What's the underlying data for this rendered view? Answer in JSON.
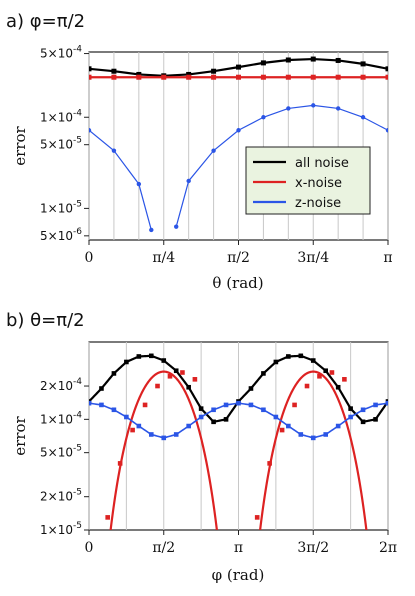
{
  "chart_data": [
    {
      "type": "line",
      "panel_label": "a) φ=π/2",
      "xlabel": "θ (rad)",
      "ylabel": "error",
      "xlim": [
        0,
        3.1416
      ],
      "ylim": [
        4.5e-06,
        0.00052
      ],
      "yscale": "log",
      "grid": "vertical lines at each point",
      "x_ticks": [
        {
          "v": 0,
          "label": "0"
        },
        {
          "v": 0.7854,
          "label": "π/4"
        },
        {
          "v": 1.5708,
          "label": "π/2"
        },
        {
          "v": 2.3562,
          "label": "3π/4"
        },
        {
          "v": 3.1416,
          "label": "π"
        }
      ],
      "y_ticks": [
        {
          "v": 0.0005,
          "m": "5×10",
          "e": "-4"
        },
        {
          "v": 0.0001,
          "m": "1×10",
          "e": "-4"
        },
        {
          "v": 5e-05,
          "m": "5×10",
          "e": "-5"
        },
        {
          "v": 1e-05,
          "m": "1×10",
          "e": "-5"
        },
        {
          "v": 5e-06,
          "m": "5×10",
          "e": "-6"
        }
      ],
      "grid_x": [
        0.0,
        0.2618,
        0.5236,
        0.7854,
        1.0472,
        1.309,
        1.5708,
        1.8326,
        2.0944,
        2.3562,
        2.618,
        2.8798,
        3.1416
      ],
      "legend": {
        "position": "lower right",
        "entries": [
          {
            "label": "all noise",
            "color": "#000000"
          },
          {
            "label": "x-noise",
            "color": "#dd2222"
          },
          {
            "label": "z-noise",
            "color": "#2b55e6"
          }
        ]
      },
      "series": [
        {
          "name": "all noise",
          "color": "#000000",
          "style": "line+markers",
          "x": [
            0.0,
            0.2618,
            0.5236,
            0.7854,
            1.0472,
            1.309,
            1.5708,
            1.8326,
            2.0944,
            2.3562,
            2.618,
            2.8798,
            3.1416
          ],
          "y": [
            0.00034,
            0.00032,
            0.000295,
            0.000285,
            0.000295,
            0.00032,
            0.000355,
            0.000395,
            0.000425,
            0.000435,
            0.00042,
            0.000385,
            0.00034
          ]
        },
        {
          "name": "x-noise",
          "color": "#dd2222",
          "style": "line+markers",
          "x": [
            0.0,
            0.2618,
            0.5236,
            0.7854,
            1.0472,
            1.309,
            1.5708,
            1.8326,
            2.0944,
            2.3562,
            2.618,
            2.8798,
            3.1416
          ],
          "y": [
            0.000275,
            0.000275,
            0.000275,
            0.000275,
            0.000275,
            0.000275,
            0.000275,
            0.000275,
            0.000275,
            0.000275,
            0.000275,
            0.000275,
            0.000275
          ]
        },
        {
          "name": "z-noise",
          "color": "#2b55e6",
          "style": "markers+connecting",
          "x": [
            0.0,
            0.2618,
            0.5236,
            0.6545,
            0.9163,
            1.0472,
            1.309,
            1.5708,
            1.8326,
            2.0944,
            2.3562,
            2.618,
            2.8798,
            3.1416
          ],
          "y": [
            7.2e-05,
            4.3e-05,
            1.85e-05,
            5.8e-06,
            6.3e-06,
            2e-05,
            4.3e-05,
            7.2e-05,
            0.0001,
            0.000125,
            0.000135,
            0.000125,
            0.0001,
            7.2e-05
          ]
        }
      ]
    },
    {
      "type": "line",
      "panel_label": "b) θ=π/2",
      "xlabel": "φ (rad)",
      "ylabel": "error",
      "xlim": [
        0,
        6.2832
      ],
      "ylim": [
        1e-05,
        0.0005
      ],
      "yscale": "log",
      "grid": "vertical lines",
      "x_ticks": [
        {
          "v": 0,
          "label": "0"
        },
        {
          "v": 1.5708,
          "label": "π/2"
        },
        {
          "v": 3.1416,
          "label": "π"
        },
        {
          "v": 4.7124,
          "label": "3π/2"
        },
        {
          "v": 6.2832,
          "label": "2π"
        }
      ],
      "y_ticks": [
        {
          "v": 0.0002,
          "m": "2×10",
          "e": "-4"
        },
        {
          "v": 0.0001,
          "m": "1×10",
          "e": "-4"
        },
        {
          "v": 5e-05,
          "m": "5×10",
          "e": "-5"
        },
        {
          "v": 2e-05,
          "m": "2×10",
          "e": "-5"
        },
        {
          "v": 1e-05,
          "m": "1×10",
          "e": "-5"
        }
      ],
      "grid_x": [
        0.0,
        0.7854,
        1.5708,
        2.3562,
        3.1416,
        3.927,
        4.7124,
        5.4978,
        6.2832
      ],
      "series": [
        {
          "name": "all noise",
          "color": "#000000",
          "style": "line+markers",
          "points_x": [
            0.0,
            0.2618,
            0.5236,
            0.7854,
            1.0472,
            1.309,
            1.5708,
            1.8326,
            2.0944,
            2.3562,
            2.618,
            2.8798,
            3.1416,
            3.4034,
            3.6652,
            3.927,
            4.1888,
            4.4506,
            4.7124,
            4.9742,
            5.236,
            5.4978,
            5.7596,
            6.0214,
            6.2832
          ],
          "points_y": [
            0.000145,
            0.00019,
            0.00026,
            0.00033,
            0.00037,
            0.000375,
            0.00034,
            0.000275,
            0.000195,
            0.000125,
            9.5e-05,
            0.0001,
            0.000145,
            0.00019,
            0.00026,
            0.00033,
            0.00037,
            0.000375,
            0.00034,
            0.000275,
            0.000195,
            0.000125,
            9.5e-05,
            0.0001,
            0.000145
          ]
        },
        {
          "name": "x-noise",
          "color": "#dd2222",
          "style": "line+markers",
          "points_x": [
            0.3927,
            0.6545,
            0.9163,
            1.1781,
            1.4399,
            1.7017,
            1.9635,
            2.2253,
            3.5343,
            3.7961,
            4.0579,
            4.3197,
            4.5815,
            4.8433,
            5.1051,
            5.3669
          ],
          "points_y": [
            1.3e-05,
            4e-05,
            8e-05,
            0.000135,
            0.0002,
            0.000245,
            0.000265,
            0.00023,
            1.3e-05,
            4e-05,
            8e-05,
            0.000135,
            0.0002,
            0.000245,
            0.000265,
            0.00023
          ]
        },
        {
          "name": "z-noise",
          "color": "#2b55e6",
          "style": "line+markers",
          "points_x": [
            0.0,
            0.2618,
            0.5236,
            0.7854,
            1.0472,
            1.309,
            1.5708,
            1.8326,
            2.0944,
            2.3562,
            2.618,
            2.8798,
            3.1416,
            3.4034,
            3.6652,
            3.927,
            4.1888,
            4.4506,
            4.7124,
            4.9742,
            5.236,
            5.4978,
            5.7596,
            6.0214,
            6.2832
          ],
          "points_y": [
            0.00014,
            0.000135,
            0.000122,
            0.000105,
            8.7e-05,
            7.3e-05,
            6.8e-05,
            7.3e-05,
            8.7e-05,
            0.000105,
            0.000122,
            0.000135,
            0.00014,
            0.000135,
            0.000122,
            0.000105,
            8.7e-05,
            7.3e-05,
            6.8e-05,
            7.3e-05,
            8.7e-05,
            0.000105,
            0.000122,
            0.000135,
            0.00014
          ]
        }
      ]
    }
  ]
}
